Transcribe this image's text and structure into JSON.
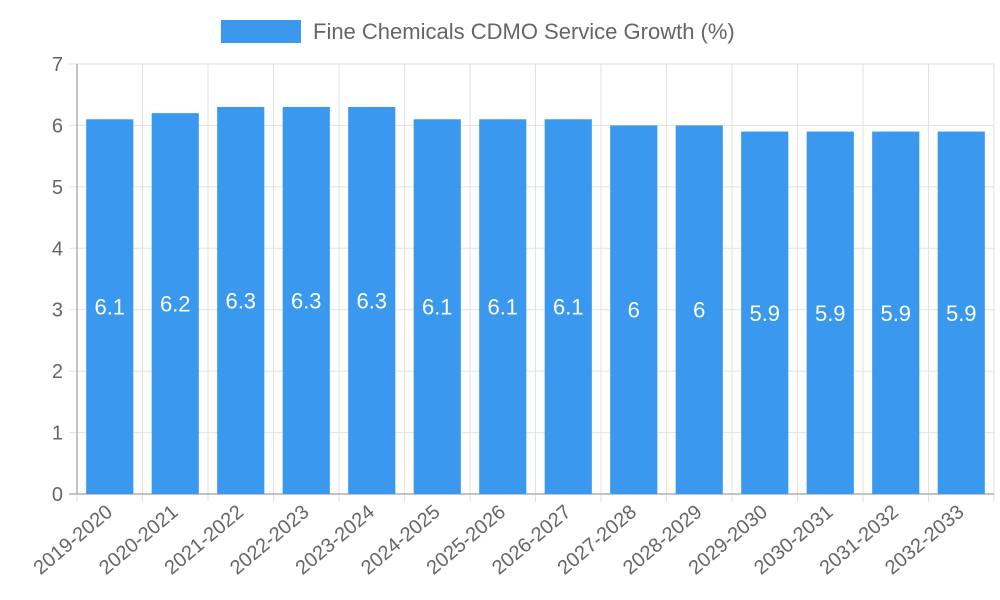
{
  "chart_data": {
    "type": "bar",
    "title": "",
    "xlabel": "",
    "ylabel": "",
    "ylim": [
      0,
      7
    ],
    "yticks": [
      0,
      1,
      2,
      3,
      4,
      5,
      6,
      7
    ],
    "grid": true,
    "legend_position": "top",
    "categories": [
      "2019-2020",
      "2020-2021",
      "2021-2022",
      "2022-2023",
      "2023-2024",
      "2024-2025",
      "2025-2026",
      "2026-2027",
      "2027-2028",
      "2028-2029",
      "2029-2030",
      "2030-2031",
      "2031-2032",
      "2032-2033"
    ],
    "series": [
      {
        "name": "Fine Chemicals CDMO Service Growth (%)",
        "color": "#3a99ee",
        "values": [
          6.1,
          6.2,
          6.3,
          6.3,
          6.3,
          6.1,
          6.1,
          6.1,
          6.0,
          6.0,
          5.9,
          5.9,
          5.9,
          5.9
        ],
        "data_labels": [
          "6.1",
          "6.2",
          "6.3",
          "6.3",
          "6.3",
          "6.1",
          "6.1",
          "6.1",
          "6",
          "6",
          "5.9",
          "5.9",
          "5.9",
          "5.9"
        ]
      }
    ]
  }
}
